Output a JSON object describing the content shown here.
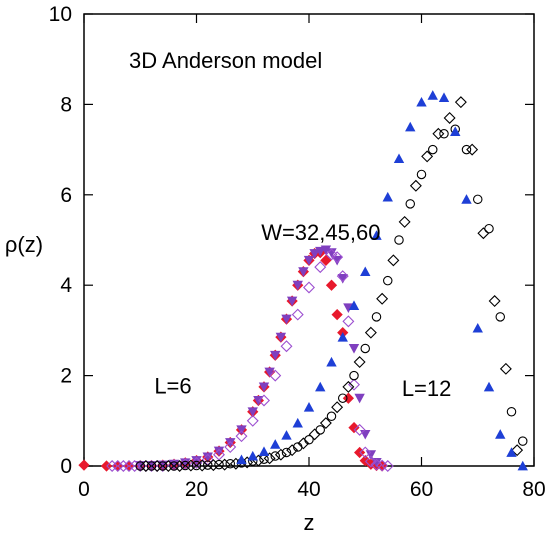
{
  "chart_data": {
    "type": "scatter",
    "title": "",
    "xlabel": "z",
    "ylabel": "ρ(z)",
    "xlim": [
      0,
      80
    ],
    "ylim": [
      0,
      10
    ],
    "xticks": [
      0,
      20,
      40,
      60,
      80
    ],
    "yticks": [
      0,
      2,
      4,
      6,
      8,
      10
    ],
    "grid": false,
    "legend": "none",
    "annotations": [
      {
        "text": "3D Anderson model",
        "x": 8,
        "y": 8.8
      },
      {
        "text": "W=32,45,60",
        "x": 31.5,
        "y": 5.0
      },
      {
        "text": "L=6",
        "x": 12.5,
        "y": 1.6
      },
      {
        "text": "L=12",
        "x": 56.5,
        "y": 1.55
      }
    ],
    "series": [
      {
        "marker": "diamond-filled",
        "color": "#e8192c",
        "x": [
          0,
          4,
          6,
          8,
          10,
          12,
          14,
          16,
          18,
          20,
          22,
          24,
          26,
          28,
          30,
          31,
          32,
          33,
          34,
          35,
          36,
          37,
          38,
          39,
          40,
          41,
          42,
          43,
          44,
          45,
          46,
          47,
          48,
          49,
          50,
          51,
          52,
          53
        ],
        "y": [
          0.02,
          0.0,
          0.0,
          0.0,
          0.01,
          0.01,
          0.02,
          0.04,
          0.07,
          0.12,
          0.2,
          0.33,
          0.52,
          0.8,
          1.2,
          1.45,
          1.75,
          2.08,
          2.45,
          2.85,
          3.25,
          3.65,
          4.0,
          4.3,
          4.55,
          4.7,
          4.72,
          4.55,
          4.0,
          3.35,
          2.95,
          1.5,
          0.85,
          0.3,
          0.12,
          0.04,
          0.01,
          0.0
        ]
      },
      {
        "marker": "triangle-down-filled",
        "color": "#7f3fbf",
        "x": [
          10,
          12,
          14,
          16,
          18,
          20,
          22,
          24,
          26,
          28,
          30,
          31,
          32,
          33,
          34,
          35,
          36,
          37,
          38,
          39,
          40,
          41,
          42,
          43,
          44,
          45,
          46,
          47,
          48,
          49,
          50,
          51,
          52
        ],
        "y": [
          0.01,
          0.01,
          0.02,
          0.04,
          0.07,
          0.12,
          0.2,
          0.33,
          0.52,
          0.8,
          1.2,
          1.45,
          1.75,
          2.08,
          2.45,
          2.85,
          3.25,
          3.65,
          4.0,
          4.3,
          4.55,
          4.7,
          4.75,
          4.78,
          4.72,
          4.55,
          4.15,
          3.5,
          2.6,
          1.5,
          0.7,
          0.25,
          0.08
        ]
      },
      {
        "marker": "diamond-open",
        "color": "#9c4fd0",
        "x": [
          5,
          6,
          7,
          8,
          9,
          10,
          11,
          12,
          13,
          14,
          16,
          18,
          20,
          22,
          24,
          26,
          28,
          30,
          32,
          34,
          36,
          38,
          40,
          42,
          44,
          45,
          46,
          47,
          48,
          49,
          50,
          51,
          52,
          53,
          54
        ],
        "y": [
          0.0,
          0.0,
          0.0,
          0.0,
          0.0,
          0.0,
          0.0,
          0.0,
          0.0,
          0.0,
          0.02,
          0.04,
          0.07,
          0.14,
          0.25,
          0.42,
          0.66,
          1.0,
          1.45,
          2.0,
          2.65,
          3.35,
          3.95,
          4.4,
          4.68,
          4.62,
          4.2,
          3.2,
          1.8,
          0.8,
          0.3,
          0.1,
          0.03,
          0.01,
          0.0
        ]
      },
      {
        "marker": "circle-open",
        "color": "#000000",
        "x": [
          10,
          12,
          14,
          16,
          18,
          20,
          22,
          24,
          26,
          28,
          30,
          32,
          34,
          36,
          38,
          40,
          42,
          44,
          46,
          48,
          50,
          52,
          54,
          56,
          58,
          60,
          62,
          64,
          66,
          68,
          70,
          72,
          74,
          76,
          78
        ],
        "y": [
          0.0,
          0.0,
          0.0,
          0.0,
          0.01,
          0.01,
          0.02,
          0.03,
          0.05,
          0.07,
          0.11,
          0.15,
          0.22,
          0.3,
          0.42,
          0.58,
          0.8,
          1.1,
          1.5,
          2.0,
          2.6,
          3.3,
          4.1,
          5.0,
          5.8,
          6.45,
          7.0,
          7.35,
          7.45,
          7.0,
          5.9,
          5.25,
          3.3,
          1.2,
          0.55
        ]
      },
      {
        "marker": "diamond-open",
        "color": "#000000",
        "x": [
          11,
          13,
          15,
          17,
          19,
          21,
          23,
          25,
          27,
          29,
          31,
          33,
          35,
          37,
          39,
          41,
          43,
          45,
          47,
          49,
          51,
          53,
          55,
          57,
          59,
          61,
          63,
          65,
          67,
          69,
          71,
          73,
          75,
          77
        ],
        "y": [
          0.0,
          0.0,
          0.0,
          0.0,
          0.01,
          0.01,
          0.02,
          0.03,
          0.05,
          0.08,
          0.12,
          0.17,
          0.25,
          0.35,
          0.5,
          0.7,
          0.95,
          1.3,
          1.75,
          2.3,
          2.95,
          3.7,
          4.55,
          5.4,
          6.2,
          6.85,
          7.35,
          7.7,
          8.05,
          7.0,
          5.15,
          3.65,
          2.15,
          0.35
        ]
      },
      {
        "marker": "triangle-up-filled",
        "color": "#1e3fd6",
        "x": [
          28,
          30,
          32,
          34,
          36,
          38,
          40,
          42,
          44,
          46,
          48,
          50,
          52,
          54,
          56,
          58,
          60,
          62,
          64,
          66,
          68,
          70,
          72,
          74,
          76,
          78
        ],
        "y": [
          0.14,
          0.22,
          0.32,
          0.48,
          0.68,
          0.95,
          1.3,
          1.75,
          2.3,
          2.85,
          3.55,
          4.3,
          5.1,
          5.95,
          6.8,
          7.5,
          8.05,
          8.2,
          8.15,
          7.4,
          5.9,
          3.05,
          1.75,
          0.7,
          0.3,
          0.0
        ]
      }
    ]
  }
}
